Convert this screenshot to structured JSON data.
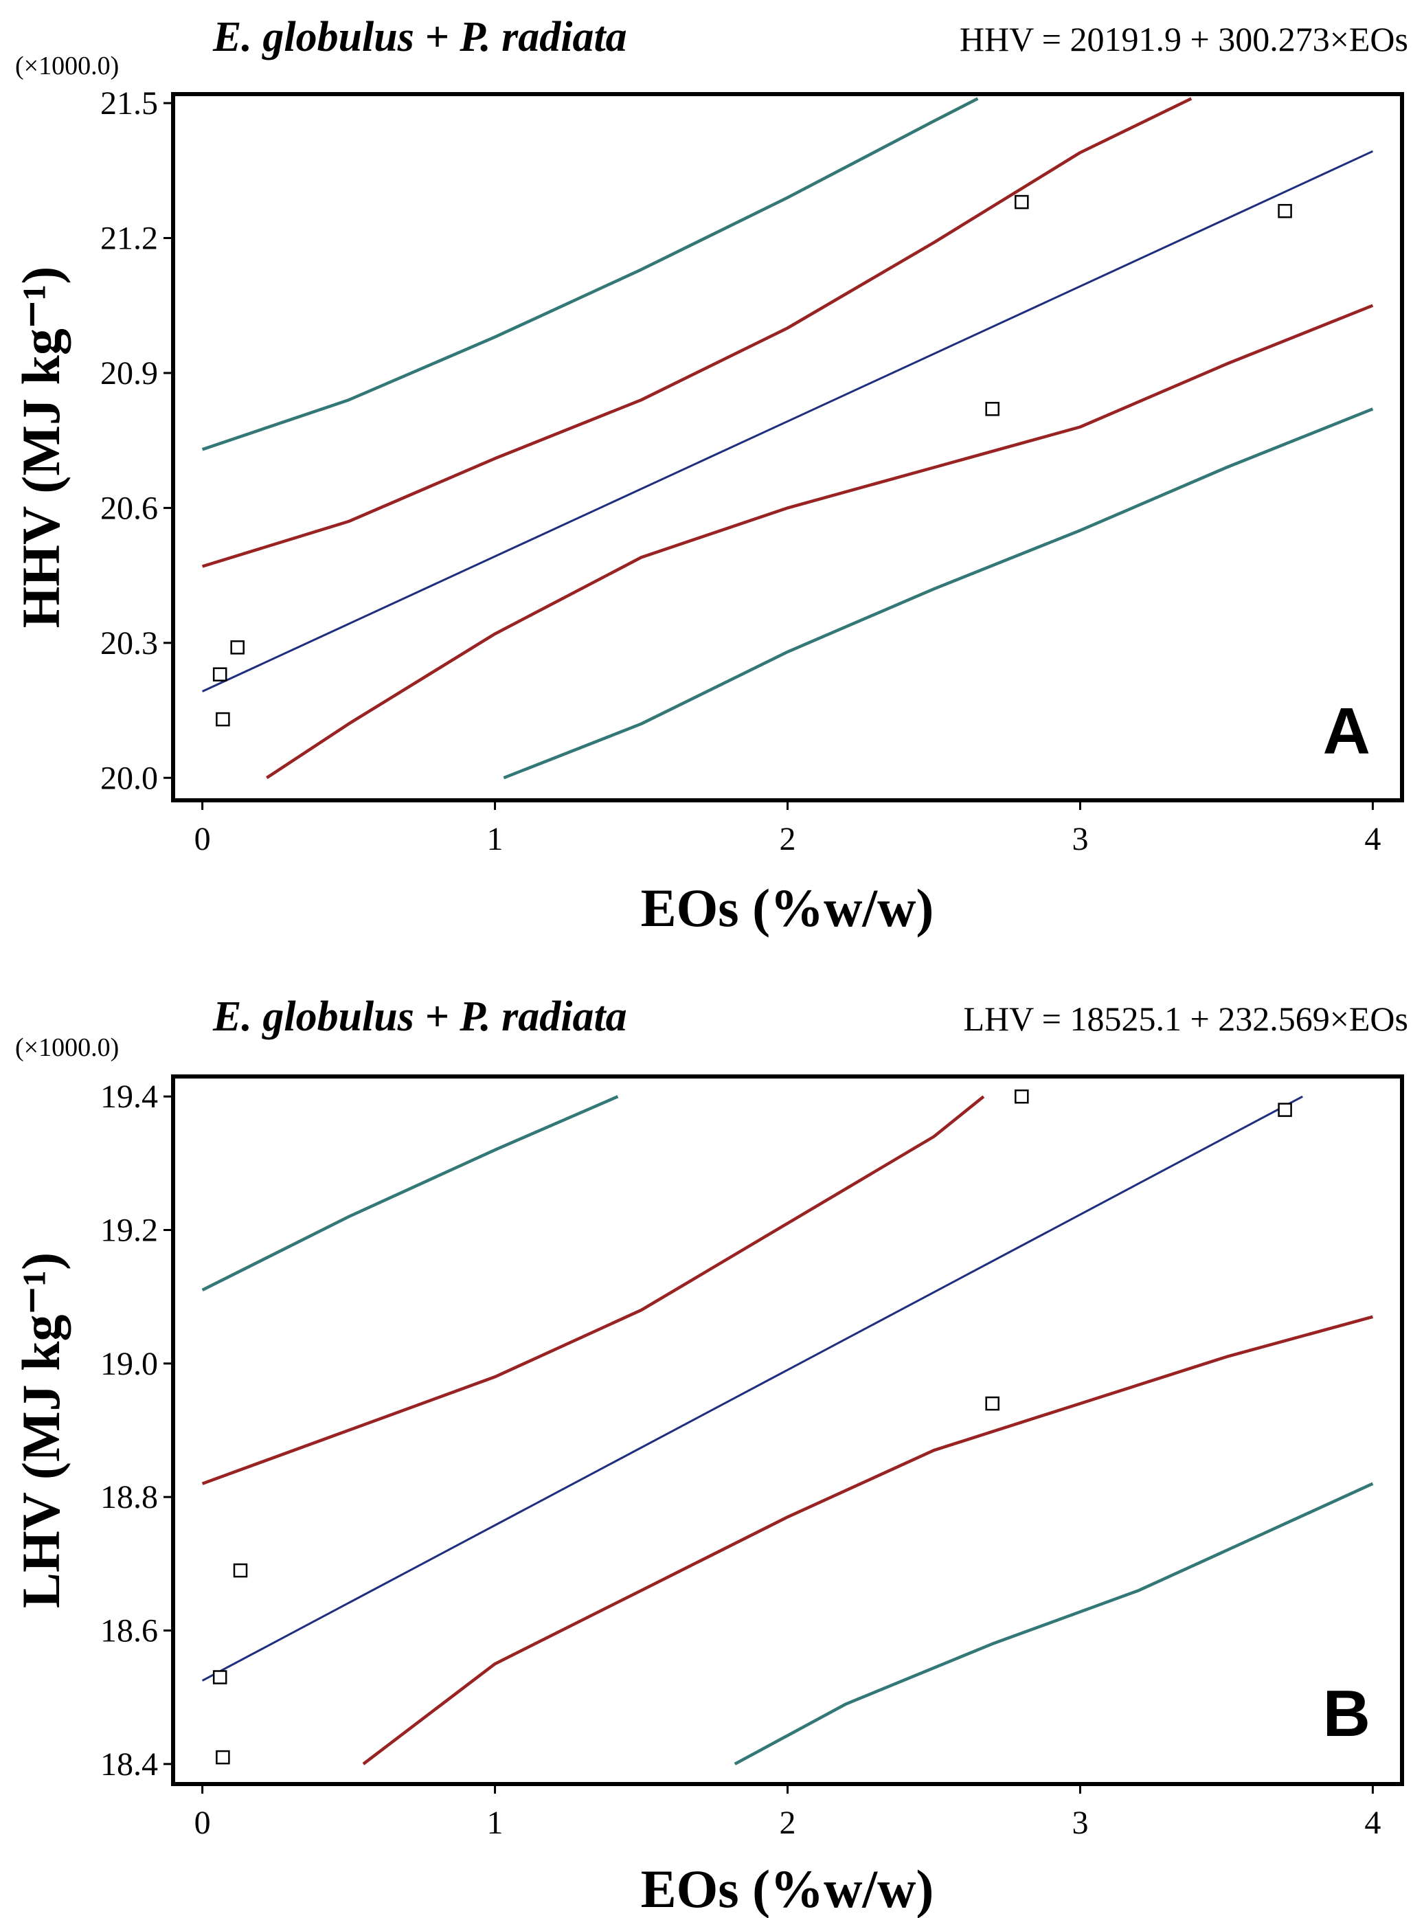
{
  "figure": "Linear regression of heating values vs essential oil content",
  "chart_data": [
    {
      "type": "line",
      "panel": "A",
      "title_left": "E. globulus + P. radiata",
      "equation": "HHV = 20191.9 + 300.273×EOs",
      "multiplier": "(×1000.0)",
      "xlabel": "EOs (%w/w)",
      "ylabel": "HHV (MJ kg⁻¹)",
      "xlim": [
        -0.1,
        4.1
      ],
      "ylim": [
        19.95,
        21.52
      ],
      "xticks": [
        0,
        1,
        2,
        3,
        4
      ],
      "xtick_labels": [
        "0",
        "1",
        "2",
        "3",
        "4"
      ],
      "yticks": [
        20.0,
        20.3,
        20.6,
        20.9,
        21.2,
        21.5
      ],
      "ytick_labels": [
        "20.0",
        "20.3",
        "20.6",
        "20.9",
        "21.2",
        "21.5"
      ],
      "colors": {
        "fit": "#1f2f7f",
        "confidence": "#992222",
        "prediction": "#337777"
      },
      "series": [
        {
          "name": "Fitted line",
          "role": "fit",
          "x": [
            0,
            4
          ],
          "y": [
            20.192,
            21.393
          ]
        },
        {
          "name": "Upper confidence limit",
          "role": "confidence",
          "x": [
            0,
            0.5,
            1.0,
            1.5,
            2.0,
            2.5,
            3.0,
            3.38
          ],
          "y": [
            20.47,
            20.57,
            20.71,
            20.84,
            21.0,
            21.19,
            21.39,
            21.51
          ]
        },
        {
          "name": "Lower confidence limit",
          "role": "confidence",
          "x": [
            0.22,
            0.5,
            1.0,
            1.5,
            2.0,
            2.5,
            3.0,
            3.5,
            4.0
          ],
          "y": [
            20.0,
            20.12,
            20.32,
            20.49,
            20.6,
            20.69,
            20.78,
            20.92,
            21.05
          ]
        },
        {
          "name": "Upper prediction limit",
          "role": "prediction",
          "x": [
            0,
            0.5,
            1.0,
            1.5,
            2.0,
            2.5,
            2.65
          ],
          "y": [
            20.73,
            20.84,
            20.98,
            21.13,
            21.29,
            21.46,
            21.51
          ]
        },
        {
          "name": "Lower prediction limit",
          "role": "prediction",
          "x": [
            1.03,
            1.5,
            2.0,
            2.5,
            3.0,
            3.5,
            4.0
          ],
          "y": [
            20.0,
            20.12,
            20.28,
            20.42,
            20.55,
            20.69,
            20.82
          ]
        }
      ],
      "points": {
        "x": [
          0.06,
          0.12,
          0.07,
          2.8,
          2.7,
          3.7
        ],
        "y": [
          20.23,
          20.29,
          20.13,
          21.28,
          20.82,
          21.26
        ]
      },
      "panel_label": "A"
    },
    {
      "type": "line",
      "panel": "B",
      "title_left": "E. globulus + P. radiata",
      "equation": "LHV = 18525.1 + 232.569×EOs",
      "multiplier": "(×1000.0)",
      "xlabel": "EOs (%w/w)",
      "ylabel": "LHV (MJ kg⁻¹)",
      "xlim": [
        -0.1,
        4.1
      ],
      "ylim": [
        18.37,
        19.43
      ],
      "xticks": [
        0,
        1,
        2,
        3,
        4
      ],
      "xtick_labels": [
        "0",
        "1",
        "2",
        "3",
        "4"
      ],
      "yticks": [
        18.4,
        18.6,
        18.8,
        19.0,
        19.2,
        19.4
      ],
      "ytick_labels": [
        "18.4",
        "18.6",
        "18.8",
        "19.0",
        "19.2",
        "19.4"
      ],
      "colors": {
        "fit": "#1f2f7f",
        "confidence": "#992222",
        "prediction": "#337777"
      },
      "series": [
        {
          "name": "Fitted line",
          "role": "fit",
          "x": [
            0,
            3.76
          ],
          "y": [
            18.525,
            19.4
          ]
        },
        {
          "name": "Upper confidence limit",
          "role": "confidence",
          "x": [
            0,
            0.5,
            1.0,
            1.5,
            2.0,
            2.5,
            2.67
          ],
          "y": [
            18.82,
            18.9,
            18.98,
            19.08,
            19.21,
            19.34,
            19.4
          ]
        },
        {
          "name": "Lower confidence limit",
          "role": "confidence",
          "x": [
            0.55,
            1.0,
            1.5,
            2.0,
            2.5,
            3.0,
            3.5,
            4.0
          ],
          "y": [
            18.4,
            18.55,
            18.66,
            18.77,
            18.87,
            18.94,
            19.01,
            19.07
          ]
        },
        {
          "name": "Upper prediction limit",
          "role": "prediction",
          "x": [
            0,
            0.5,
            1.0,
            1.42
          ],
          "y": [
            19.11,
            19.22,
            19.32,
            19.4
          ]
        },
        {
          "name": "Lower prediction limit",
          "role": "prediction",
          "x": [
            1.82,
            2.2,
            2.7,
            3.2,
            3.6,
            4.0
          ],
          "y": [
            18.4,
            18.49,
            18.58,
            18.66,
            18.74,
            18.82
          ]
        }
      ],
      "points": {
        "x": [
          0.06,
          0.13,
          0.07,
          2.8,
          2.7,
          3.7
        ],
        "y": [
          18.53,
          18.69,
          18.41,
          19.4,
          18.94,
          19.38
        ]
      },
      "panel_label": "B"
    }
  ]
}
